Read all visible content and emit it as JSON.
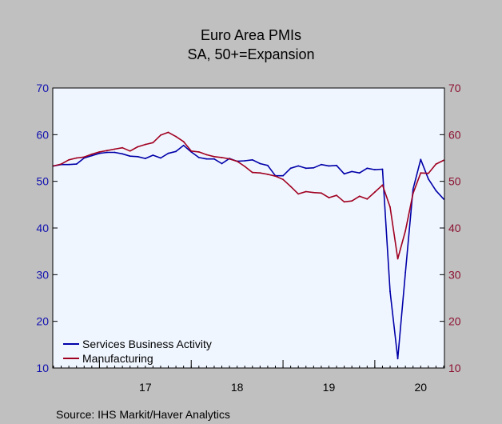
{
  "chart_data": {
    "type": "line",
    "title": "Euro Area PMIs",
    "subtitle": "SA, 50+=Expansion",
    "source": "Source:  IHS Markit/Haver Analytics",
    "x_start": "2016-07",
    "x_end": "2020-10",
    "ylim": [
      10,
      70
    ],
    "yticks": [
      10,
      20,
      30,
      40,
      50,
      60,
      70
    ],
    "year_ticks": [
      {
        "label": "17",
        "x": "2017-01",
        "center": "2017-07"
      },
      {
        "label": "18",
        "x": "2018-01",
        "center": "2018-07"
      },
      {
        "label": "19",
        "x": "2019-01",
        "center": "2019-07"
      },
      {
        "label": "20",
        "x": "2020-01",
        "center": "2020-07"
      }
    ],
    "grid": false,
    "legend_position": "bottom-left",
    "colors": {
      "plot_bg": "#f0f6ff",
      "frame_bg": "#c0c0c0",
      "left_axis": "#1010b0",
      "right_axis": "#8b1030"
    },
    "x": [
      "2016-07",
      "2016-08",
      "2016-09",
      "2016-10",
      "2016-11",
      "2016-12",
      "2017-01",
      "2017-02",
      "2017-03",
      "2017-04",
      "2017-05",
      "2017-06",
      "2017-07",
      "2017-08",
      "2017-09",
      "2017-10",
      "2017-11",
      "2017-12",
      "2018-01",
      "2018-02",
      "2018-03",
      "2018-04",
      "2018-05",
      "2018-06",
      "2018-07",
      "2018-08",
      "2018-09",
      "2018-10",
      "2018-11",
      "2018-12",
      "2019-01",
      "2019-02",
      "2019-03",
      "2019-04",
      "2019-05",
      "2019-06",
      "2019-07",
      "2019-08",
      "2019-09",
      "2019-10",
      "2019-11",
      "2019-12",
      "2020-01",
      "2020-02",
      "2020-03",
      "2020-04",
      "2020-05",
      "2020-06",
      "2020-07",
      "2020-08",
      "2020-09",
      "2020-10"
    ],
    "series": [
      {
        "name": "Services Business Activity",
        "color": "#0000a8",
        "values": [
          53.3,
          53.6,
          53.6,
          53.7,
          55.0,
          55.5,
          56.0,
          56.2,
          56.2,
          55.9,
          55.4,
          55.3,
          54.9,
          55.6,
          55.0,
          56.0,
          56.4,
          57.7,
          56.3,
          55.1,
          54.8,
          54.8,
          53.8,
          54.9,
          54.3,
          54.4,
          54.6,
          53.8,
          53.4,
          51.2,
          51.2,
          52.8,
          53.3,
          52.8,
          52.9,
          53.6,
          53.3,
          53.4,
          51.6,
          52.1,
          51.8,
          52.8,
          52.5,
          52.6,
          26.4,
          12.0,
          30.5,
          48.3,
          54.7,
          50.5,
          48.0,
          46.2
        ]
      },
      {
        "name": "Manufacturing",
        "color": "#a00020",
        "values": [
          53.3,
          53.7,
          54.6,
          55.0,
          55.2,
          55.8,
          56.3,
          56.6,
          56.9,
          57.2,
          56.5,
          57.4,
          57.9,
          58.3,
          59.9,
          60.5,
          59.6,
          58.5,
          56.5,
          56.3,
          55.7,
          55.3,
          55.1,
          54.8,
          54.3,
          53.2,
          51.9,
          51.8,
          51.5,
          51.1,
          50.4,
          48.9,
          47.3,
          47.8,
          47.6,
          47.5,
          46.5,
          47.0,
          45.6,
          45.8,
          46.8,
          46.2,
          47.7,
          49.2,
          44.5,
          33.4,
          39.4,
          47.4,
          51.8,
          51.7,
          53.7,
          54.5
        ]
      }
    ]
  }
}
